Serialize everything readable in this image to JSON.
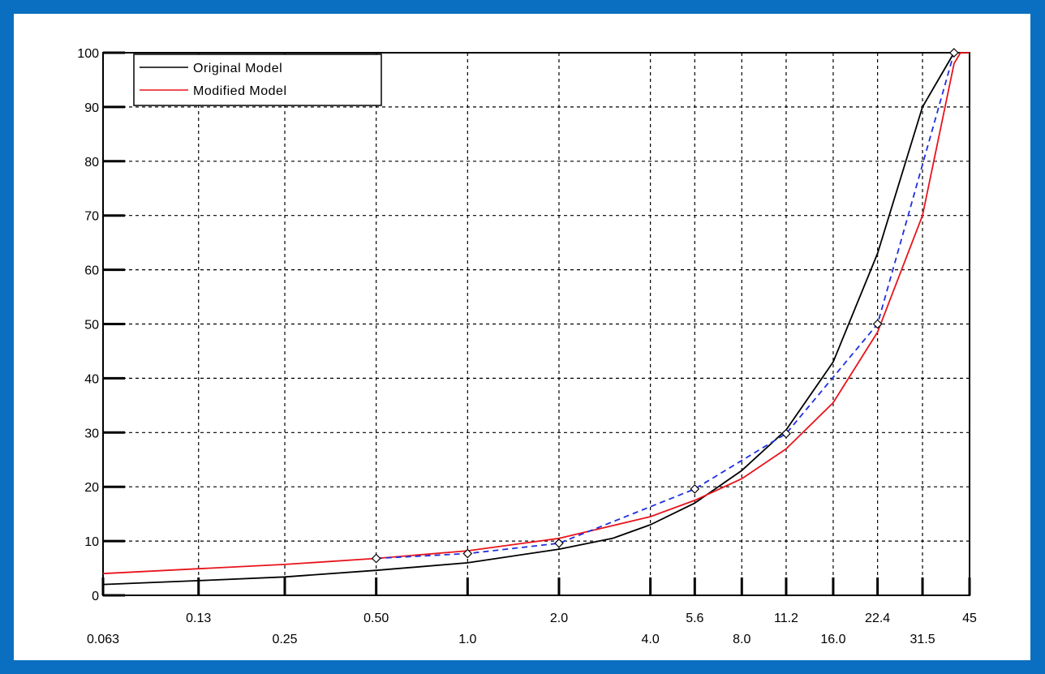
{
  "chart_data": {
    "type": "line",
    "title": "",
    "xlabel": "",
    "ylabel": "",
    "ylim": [
      0,
      100
    ],
    "y_ticks": [
      0,
      10,
      20,
      30,
      40,
      50,
      60,
      70,
      80,
      90,
      100
    ],
    "x_ticks_row1": [
      "0.13",
      "0.50",
      "2.0",
      "5.6",
      "11.2",
      "22.4",
      "45"
    ],
    "x_ticks_row2": [
      "0.063",
      "0.25",
      "1.0",
      "4.0",
      "8.0",
      "16.0",
      "31.5"
    ],
    "x_categories": [
      "0.063",
      "0.13",
      "0.25",
      "0.50",
      "1.0",
      "2.0",
      "4.0",
      "5.6",
      "8.0",
      "11.2",
      "16.0",
      "22.4",
      "31.5",
      "45"
    ],
    "grid": true,
    "legend_position": "top-left",
    "legend": [
      "Original Model",
      "Modified Model"
    ],
    "series": [
      {
        "name": "Original Model",
        "color": "#000000",
        "style": "solid",
        "points": [
          [
            0.063,
            2
          ],
          [
            0.13,
            2.7
          ],
          [
            0.25,
            3.4
          ],
          [
            0.5,
            4.6
          ],
          [
            1.0,
            6
          ],
          [
            2.0,
            8.5
          ],
          [
            3.0,
            10.5
          ],
          [
            4.0,
            13
          ],
          [
            5.6,
            17
          ],
          [
            8.0,
            23
          ],
          [
            11.2,
            30.5
          ],
          [
            16.0,
            43
          ],
          [
            22.4,
            63
          ],
          [
            31.5,
            90
          ],
          [
            40,
            100
          ],
          [
            45,
            100
          ]
        ]
      },
      {
        "name": "Modified Model",
        "color": "#e8141c",
        "style": "solid",
        "points": [
          [
            0.063,
            4
          ],
          [
            0.13,
            4.9
          ],
          [
            0.25,
            5.7
          ],
          [
            0.5,
            6.8
          ],
          [
            1.0,
            8.2
          ],
          [
            2.0,
            10.5
          ],
          [
            4.0,
            14.5
          ],
          [
            5.6,
            17.5
          ],
          [
            8.0,
            21.5
          ],
          [
            11.2,
            27
          ],
          [
            16.0,
            35.5
          ],
          [
            22.4,
            48.5
          ],
          [
            31.5,
            70
          ],
          [
            40,
            98
          ],
          [
            42,
            100
          ],
          [
            45,
            100
          ]
        ]
      },
      {
        "color": "#1f2fe0",
        "style": "dashed",
        "markers": true,
        "points": [
          [
            0.5,
            6.8
          ],
          [
            1.0,
            7.7
          ],
          [
            2.0,
            9.6
          ],
          [
            5.6,
            19.6
          ],
          [
            11.2,
            29.8
          ],
          [
            22.4,
            50
          ],
          [
            40,
            100
          ]
        ]
      }
    ]
  }
}
